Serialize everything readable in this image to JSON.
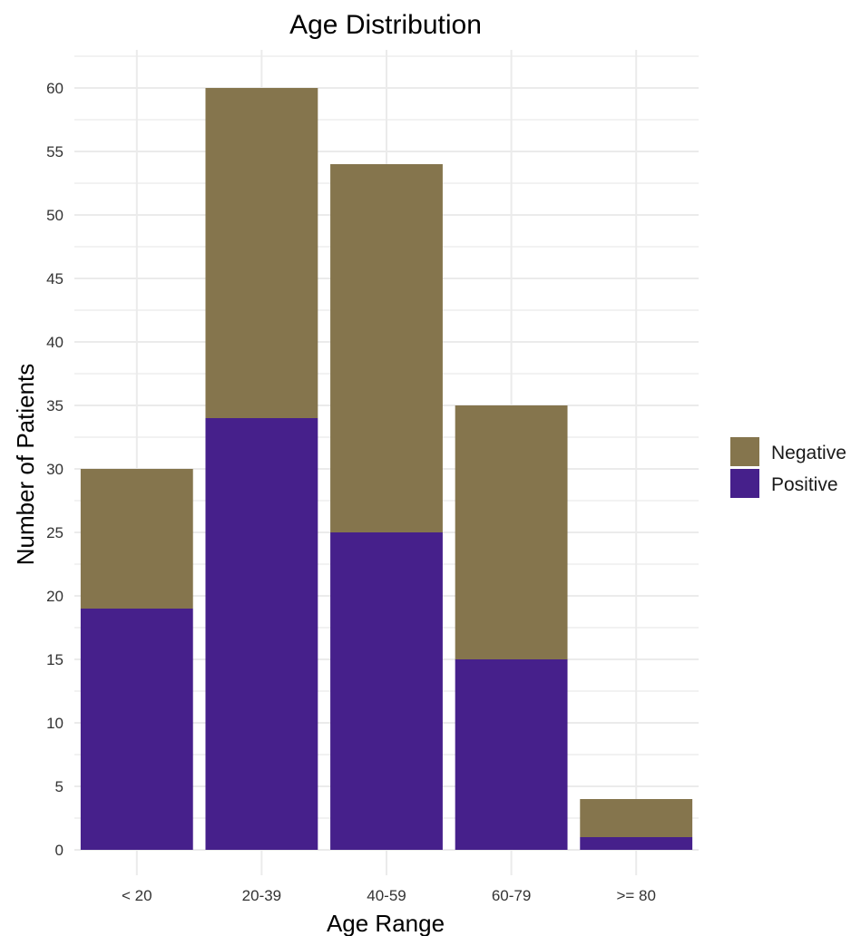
{
  "chart_data": {
    "type": "bar",
    "stacked": true,
    "title": "Age Distribution",
    "xlabel": "Age Range",
    "ylabel": "Number of Patients",
    "categories": [
      "< 20",
      "20-39",
      "40-59",
      "60-79",
      ">= 80"
    ],
    "series": [
      {
        "name": "Positive",
        "color": "#46208b",
        "values": [
          19,
          34,
          25,
          15,
          1
        ]
      },
      {
        "name": "Negative",
        "color": "#85754d",
        "values": [
          11,
          26,
          29,
          20,
          3
        ]
      }
    ],
    "legend": {
      "position": "right",
      "order": [
        "Negative",
        "Positive"
      ]
    },
    "ylim": [
      -2,
      63
    ],
    "yticks": [
      0,
      5,
      10,
      15,
      20,
      25,
      30,
      35,
      40,
      45,
      50,
      55,
      60
    ],
    "grid": true,
    "grid_color": "#ebebeb"
  }
}
